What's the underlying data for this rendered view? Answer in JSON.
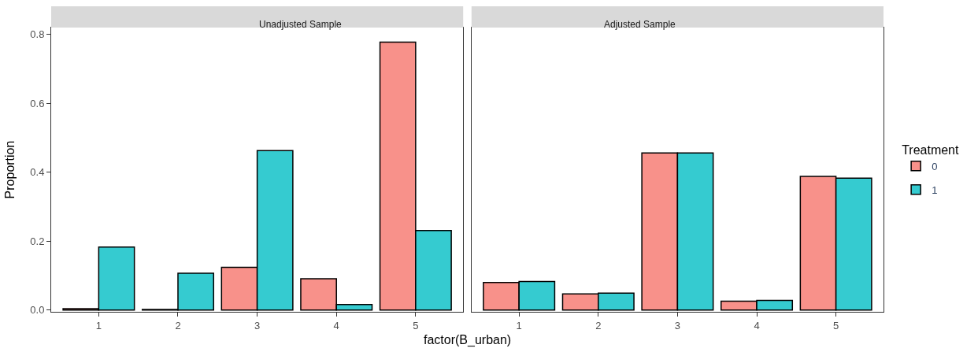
{
  "chart_data": [
    {
      "type": "bar",
      "title": "Unadjusted Sample",
      "xlabel": "factor(B_urban)",
      "ylabel": "Proportion",
      "categories": [
        "1",
        "2",
        "3",
        "4",
        "5"
      ],
      "series": [
        {
          "name": "0",
          "color": "#f8918a",
          "values": [
            0.004,
            0.002,
            0.124,
            0.091,
            0.778
          ]
        },
        {
          "name": "1",
          "color": "#35cbd0",
          "values": [
            0.183,
            0.107,
            0.463,
            0.016,
            0.231
          ]
        }
      ],
      "ylim": [
        -0.005,
        0.82
      ],
      "yticks": [
        {
          "value": 0,
          "label": "0.0"
        },
        0.2,
        0.4,
        0.6,
        0.8
      ],
      "legend": "right",
      "legend_title": "Treatment"
    },
    {
      "type": "bar",
      "title": "Adjusted Sample",
      "categories": [
        "1",
        "2",
        "3",
        "4",
        "5"
      ],
      "series": [
        {
          "name": "0",
          "color": "#f8918a",
          "values": [
            0.08,
            0.047,
            0.456,
            0.026,
            0.388
          ]
        },
        {
          "name": "1",
          "color": "#35cbd0",
          "values": [
            0.083,
            0.049,
            0.456,
            0.028,
            0.383
          ]
        }
      ],
      "ylim": [
        -0.005,
        0.82
      ],
      "tick_labels": "x"
    }
  ]
}
